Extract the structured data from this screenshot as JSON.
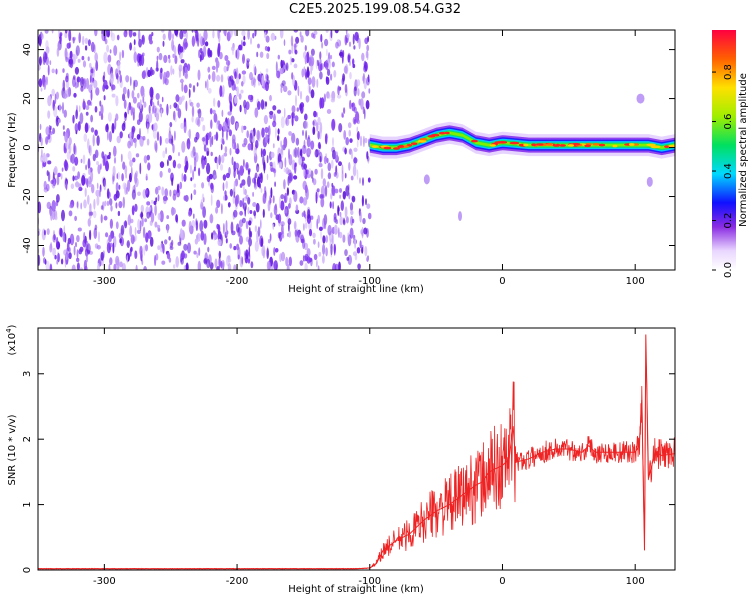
{
  "title": "C2E5.2025.199.08.54.G32",
  "colors": {
    "trace": "#ee2222",
    "speckle": "#6a1ee8",
    "background": "#ffffff"
  },
  "chart_data": [
    {
      "type": "heatmap",
      "xlabel": "Height of straight line (km)",
      "ylabel": "Frequency (Hz)",
      "xlim": [
        -350,
        130
      ],
      "ylim": [
        -50,
        48
      ],
      "xticks": [
        -300,
        -200,
        -100,
        0,
        100
      ],
      "yticks": [
        -40,
        -20,
        0,
        20,
        40
      ],
      "noise_region_x": [
        -350,
        -100
      ],
      "ridge": {
        "x": [
          -100,
          -90,
          -80,
          -70,
          -60,
          -50,
          -40,
          -30,
          -20,
          -10,
          0,
          20,
          40,
          60,
          80,
          100,
          110,
          120,
          130
        ],
        "y": [
          1,
          0,
          0,
          1,
          3,
          5,
          6,
          5,
          2,
          1,
          2,
          1,
          1,
          1,
          1,
          1,
          1,
          0,
          1
        ]
      },
      "colorbar": {
        "label": "Normalized spectral amplitude",
        "ticks": [
          0.0,
          0.2,
          0.4,
          0.6,
          0.8
        ],
        "range": [
          0,
          0.97
        ],
        "colormap": "rainbow"
      }
    },
    {
      "type": "line",
      "xlabel": "Height of straight line (km)",
      "ylabel": "SNR (10 * v/v)",
      "scale_label": "(x10",
      "scale_exp": "4",
      "scale_close": ")",
      "xlim": [
        -350,
        130
      ],
      "ylim": [
        0,
        3.7
      ],
      "xticks": [
        -300,
        -200,
        -100,
        0,
        100
      ],
      "yticks": [
        0,
        1,
        2,
        3
      ],
      "series": [
        {
          "x": [
            -350,
            -300,
            -200,
            -110,
            -100,
            -95,
            -90,
            -80,
            -70,
            -60,
            -50,
            -40,
            -30,
            -20,
            -15,
            -10,
            -5,
            0,
            5,
            8,
            10,
            20,
            30,
            40,
            50,
            60,
            65,
            70,
            80,
            90,
            100,
            103,
            105,
            107,
            108,
            110,
            115,
            120,
            130
          ],
          "y": [
            0.02,
            0.02,
            0.02,
            0.02,
            0.03,
            0.1,
            0.3,
            0.45,
            0.55,
            0.75,
            0.9,
            1.0,
            1.15,
            1.3,
            1.35,
            1.5,
            1.55,
            1.6,
            1.7,
            2.2,
            1.65,
            1.7,
            1.8,
            1.85,
            1.85,
            1.8,
            1.9,
            1.8,
            1.8,
            1.8,
            1.8,
            1.9,
            2.6,
            0.3,
            3.6,
            1.4,
            1.8,
            1.75,
            1.78
          ]
        }
      ]
    }
  ]
}
